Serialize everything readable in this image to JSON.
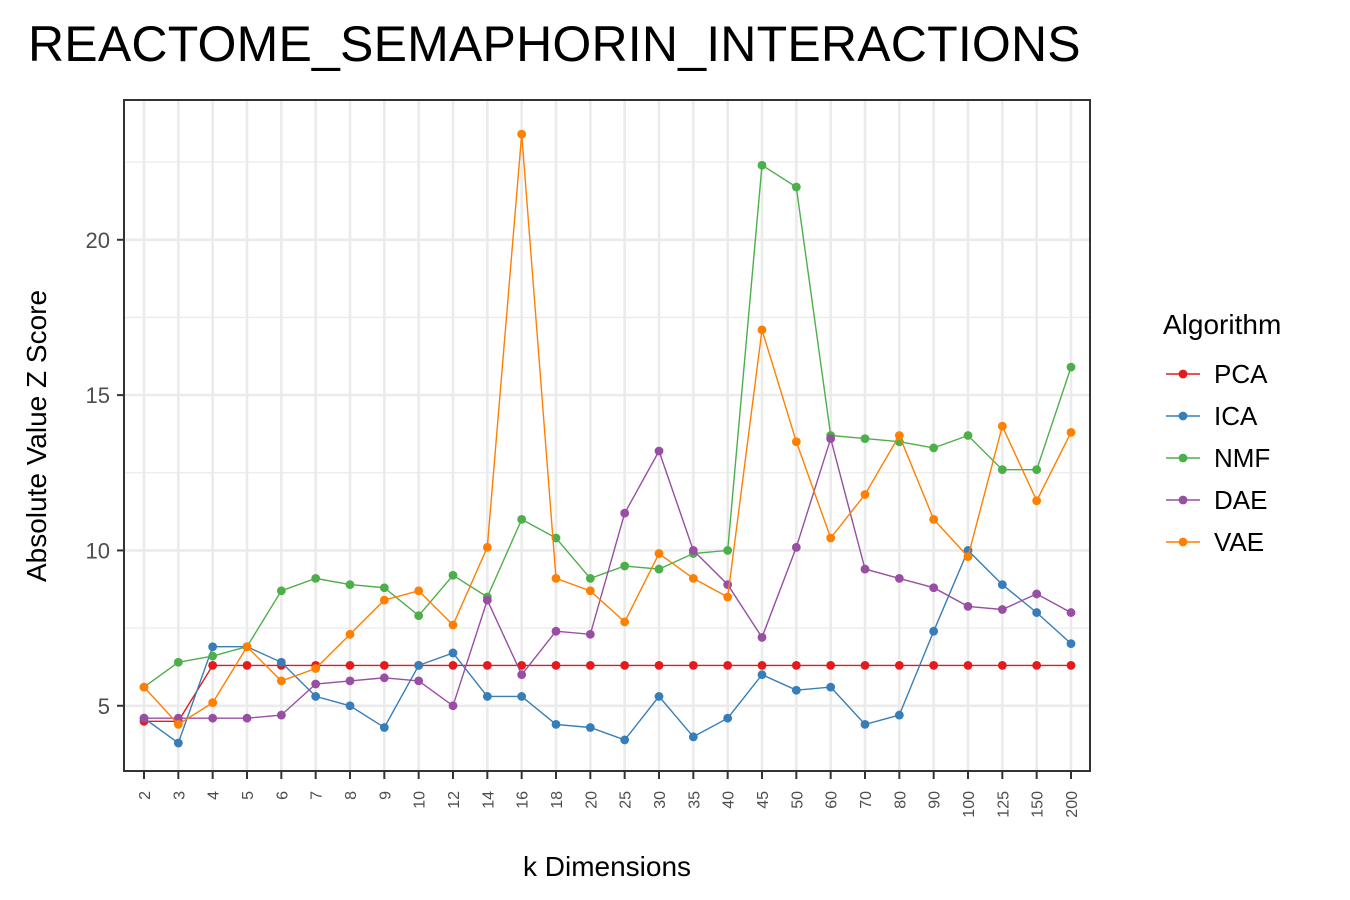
{
  "chart_data": {
    "type": "line",
    "title": "REACTOME_SEMAPHORIN_INTERACTIONS",
    "xlabel": "k Dimensions",
    "ylabel": "Absolute Value Z Score",
    "categories": [
      "2",
      "3",
      "4",
      "5",
      "6",
      "7",
      "8",
      "9",
      "10",
      "12",
      "14",
      "16",
      "18",
      "20",
      "25",
      "30",
      "35",
      "40",
      "45",
      "50",
      "60",
      "70",
      "80",
      "90",
      "100",
      "125",
      "150",
      "200"
    ],
    "ylim": [
      2.9,
      24.5
    ],
    "yticks": [
      5,
      10,
      15,
      20
    ],
    "grid": true,
    "legend": {
      "title": "Algorithm",
      "position": "right"
    },
    "series": [
      {
        "name": "PCA",
        "color": "#E41A1C",
        "values": [
          4.5,
          4.5,
          6.3,
          6.3,
          6.3,
          6.3,
          6.3,
          6.3,
          6.3,
          6.3,
          6.3,
          6.3,
          6.3,
          6.3,
          6.3,
          6.3,
          6.3,
          6.3,
          6.3,
          6.3,
          6.3,
          6.3,
          6.3,
          6.3,
          6.3,
          6.3,
          6.3,
          6.3
        ]
      },
      {
        "name": "ICA",
        "color": "#377EB8",
        "values": [
          4.6,
          3.8,
          6.9,
          6.9,
          6.4,
          5.3,
          5.0,
          4.3,
          6.3,
          6.7,
          5.3,
          5.3,
          4.4,
          4.3,
          3.9,
          5.3,
          4.0,
          4.6,
          6.0,
          5.5,
          5.6,
          4.4,
          4.7,
          7.4,
          10.0,
          8.9,
          8.0,
          7.0
        ]
      },
      {
        "name": "NMF",
        "color": "#4DAF4A",
        "values": [
          5.6,
          6.4,
          6.6,
          6.9,
          8.7,
          9.1,
          8.9,
          8.8,
          7.9,
          9.2,
          8.5,
          11.0,
          10.4,
          9.1,
          9.5,
          9.4,
          9.9,
          10.0,
          22.4,
          21.7,
          13.7,
          13.6,
          13.5,
          13.3,
          13.7,
          12.6,
          12.6,
          15.9
        ]
      },
      {
        "name": "DAE",
        "color": "#984EA3",
        "values": [
          4.6,
          4.6,
          4.6,
          4.6,
          4.7,
          5.7,
          5.8,
          5.9,
          5.8,
          5.0,
          8.4,
          6.0,
          7.4,
          7.3,
          11.2,
          13.2,
          10.0,
          8.9,
          7.2,
          10.1,
          13.6,
          9.4,
          9.1,
          8.8,
          8.2,
          8.1,
          8.6,
          8.0
        ]
      },
      {
        "name": "VAE",
        "color": "#FF7F00",
        "values": [
          5.6,
          4.4,
          5.1,
          6.9,
          5.8,
          6.2,
          7.3,
          8.4,
          8.7,
          7.6,
          10.1,
          23.4,
          9.1,
          8.7,
          7.7,
          9.9,
          9.1,
          8.5,
          17.1,
          13.5,
          10.4,
          11.8,
          13.7,
          11.0,
          9.8,
          14.0,
          11.6,
          13.8
        ]
      }
    ]
  }
}
